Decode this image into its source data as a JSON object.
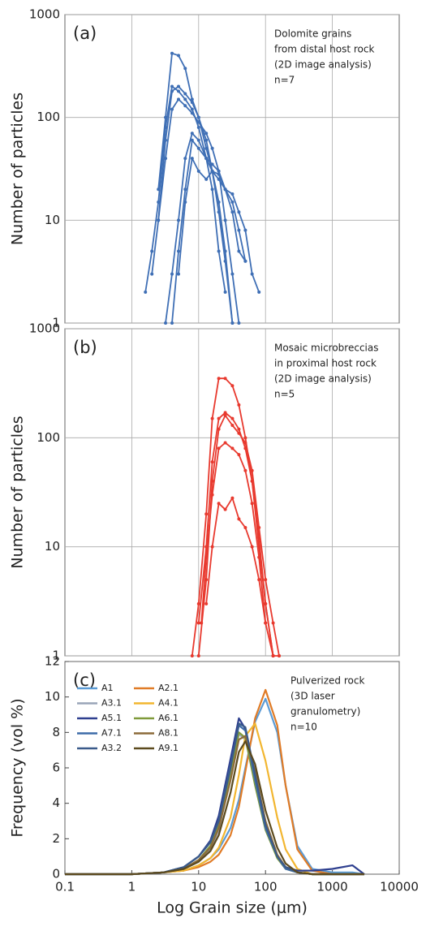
{
  "chart_data": [
    {
      "type": "line",
      "panel_label": "(a)",
      "ylabel": "Number of particles",
      "ylog": true,
      "xlog": true,
      "grid": true,
      "markers": true,
      "xtick_labels": false,
      "annotation": [
        "Dolomite grains",
        "from distal host rock",
        "(2D image analysis)",
        "n=7"
      ],
      "xlim": [
        0.1,
        10000
      ],
      "xticks": [
        1,
        10,
        100,
        1000
      ],
      "ylim": [
        1,
        1000
      ],
      "yticks": [
        1,
        10,
        100,
        1000
      ],
      "series": [
        {
          "color": "#3f6fb5",
          "x": [
            2.5,
            3.2,
            4,
            5,
            6.3,
            8,
            10,
            13,
            16,
            20,
            25,
            32
          ],
          "values": [
            20,
            100,
            420,
            400,
            300,
            150,
            100,
            50,
            30,
            15,
            5,
            1
          ]
        },
        {
          "color": "#3f6fb5",
          "x": [
            1.6,
            2,
            2.5,
            3.2,
            4,
            5,
            6.3,
            8,
            10,
            13,
            16,
            20,
            25
          ],
          "values": [
            2,
            5,
            15,
            80,
            200,
            180,
            150,
            120,
            80,
            40,
            20,
            5,
            2
          ]
        },
        {
          "color": "#3f6fb5",
          "x": [
            2,
            2.5,
            3.2,
            4,
            5,
            6.3,
            8,
            10,
            13,
            16,
            20,
            25,
            32
          ],
          "values": [
            3,
            10,
            60,
            180,
            200,
            170,
            140,
            100,
            60,
            30,
            12,
            4,
            1
          ]
        },
        {
          "color": "#3f6fb5",
          "x": [
            3.2,
            4,
            5,
            6.3,
            8,
            10,
            13,
            16,
            20,
            25,
            32,
            40,
            50
          ],
          "values": [
            1,
            3,
            10,
            40,
            70,
            60,
            40,
            35,
            30,
            20,
            12,
            5,
            4
          ]
        },
        {
          "color": "#3f6fb5",
          "x": [
            4,
            5,
            6.3,
            8,
            10,
            13,
            16,
            20,
            25,
            32,
            40,
            50
          ],
          "values": [
            1,
            5,
            20,
            60,
            50,
            40,
            30,
            25,
            20,
            15,
            8,
            4
          ]
        },
        {
          "color": "#3f6fb5",
          "x": [
            5,
            6.3,
            8,
            10,
            13,
            16,
            20,
            25,
            32,
            40,
            50,
            63,
            80
          ],
          "values": [
            3,
            15,
            40,
            30,
            25,
            30,
            28,
            20,
            18,
            12,
            8,
            3,
            2
          ]
        },
        {
          "color": "#3f6fb5",
          "x": [
            2.5,
            3.2,
            4,
            5,
            6.3,
            8,
            10,
            13,
            16,
            20,
            25,
            32,
            40
          ],
          "values": [
            10,
            40,
            120,
            150,
            130,
            110,
            90,
            70,
            50,
            30,
            10,
            3,
            1
          ]
        }
      ]
    },
    {
      "type": "line",
      "panel_label": "(b)",
      "ylabel": "Number of particles",
      "ylog": true,
      "xlog": true,
      "grid": true,
      "markers": true,
      "xtick_labels": false,
      "annotation": [
        "Mosaic microbreccias",
        "in proximal host rock",
        "(2D image analysis)",
        "n=5"
      ],
      "xlim": [
        0.1,
        10000
      ],
      "xticks": [
        1,
        10,
        100,
        1000
      ],
      "ylim": [
        1,
        1000
      ],
      "yticks": [
        1,
        10,
        100,
        1000
      ],
      "series": [
        {
          "color": "#e8392e",
          "x": [
            8,
            10,
            13,
            16,
            20,
            25,
            32,
            40,
            50,
            63,
            80,
            100,
            130,
            160
          ],
          "values": [
            1,
            3,
            20,
            150,
            350,
            350,
            300,
            200,
            100,
            40,
            10,
            3,
            1,
            1
          ]
        },
        {
          "color": "#e8392e",
          "x": [
            10,
            13,
            16,
            20,
            25,
            32,
            40,
            50,
            63,
            80,
            100,
            130
          ],
          "values": [
            2,
            10,
            60,
            150,
            170,
            150,
            120,
            80,
            40,
            12,
            3,
            1
          ]
        },
        {
          "color": "#e8392e",
          "x": [
            10,
            13,
            16,
            20,
            25,
            32,
            40,
            50,
            63,
            80,
            100,
            130,
            160
          ],
          "values": [
            1,
            5,
            40,
            120,
            160,
            130,
            110,
            90,
            50,
            15,
            5,
            2,
            1
          ]
        },
        {
          "color": "#e8392e",
          "x": [
            11,
            13,
            16,
            20,
            25,
            32,
            40,
            50,
            63,
            80,
            100
          ],
          "values": [
            2,
            8,
            30,
            80,
            90,
            80,
            70,
            50,
            25,
            8,
            2
          ]
        },
        {
          "color": "#e8392e",
          "x": [
            13,
            16,
            20,
            25,
            32,
            40,
            50,
            63,
            80,
            100,
            130
          ],
          "values": [
            3,
            10,
            25,
            22,
            28,
            18,
            15,
            10,
            5,
            2,
            1
          ]
        }
      ]
    },
    {
      "type": "line",
      "panel_label": "(c)",
      "ylabel": "Frequency (vol %)",
      "xlabel": "Log Grain size  (μm)",
      "ylog": false,
      "xlog": true,
      "grid": false,
      "markers": false,
      "xtick_labels": true,
      "annotation": [
        "Pulverized rock",
        "(3D laser",
        "granulometry)",
        "n=10"
      ],
      "xlim": [
        0.1,
        10000
      ],
      "xticks": [
        0.1,
        1,
        10,
        100,
        1000,
        10000
      ],
      "ylim": [
        0,
        12
      ],
      "yticks": [
        0,
        2,
        4,
        6,
        8,
        10,
        12
      ],
      "x": [
        0.1,
        1,
        3,
        6,
        10,
        15,
        20,
        30,
        40,
        50,
        70,
        100,
        150,
        200,
        300,
        500,
        1000,
        2000,
        3000
      ],
      "series": [
        {
          "name": "A1",
          "color": "#5b9bd5",
          "values": [
            0,
            0,
            0.1,
            0.2,
            0.5,
            0.9,
            1.4,
            2.6,
            4.2,
            6,
            8.6,
            9.9,
            8,
            5,
            1.6,
            0.3,
            0.1,
            0.1,
            0
          ]
        },
        {
          "name": "A2.1",
          "color": "#e07b26",
          "values": [
            0,
            0,
            0.1,
            0.2,
            0.4,
            0.7,
            1.1,
            2.2,
            3.8,
            5.8,
            8.8,
            10.4,
            8.4,
            5,
            1.4,
            0.2,
            0,
            0,
            0
          ]
        },
        {
          "name": "A3.1",
          "color": "#9aa5b8",
          "values": [
            0,
            0,
            0.1,
            0.3,
            0.7,
            1.4,
            2.5,
            5.4,
            7.9,
            7.6,
            5.2,
            2.8,
            1,
            0.4,
            0.1,
            0,
            0,
            0,
            0
          ]
        },
        {
          "name": "A4.1",
          "color": "#f2b630",
          "values": [
            0,
            0,
            0.1,
            0.2,
            0.5,
            0.9,
            1.5,
            3.2,
            5.6,
            7.8,
            8.5,
            6.4,
            3.2,
            1.4,
            0.3,
            0,
            0,
            0,
            0
          ]
        },
        {
          "name": "A5.1",
          "color": "#2e3f8f",
          "values": [
            0,
            0,
            0.1,
            0.4,
            1,
            1.9,
            3.3,
            6.5,
            8.8,
            8.2,
            5.4,
            2.7,
            1,
            0.4,
            0.2,
            0.2,
            0.3,
            0.5,
            0
          ]
        },
        {
          "name": "A6.1",
          "color": "#7f9a3a",
          "values": [
            0,
            0,
            0.1,
            0.3,
            0.8,
            1.6,
            2.8,
            5.8,
            8,
            7.7,
            5,
            2.5,
            0.9,
            0.3,
            0.1,
            0,
            0,
            0,
            0
          ]
        },
        {
          "name": "A7.1",
          "color": "#3d6ca8",
          "values": [
            0,
            0,
            0.1,
            0.4,
            1,
            1.8,
            3,
            6.1,
            8.4,
            8.1,
            5.3,
            2.6,
            1,
            0.3,
            0.1,
            0,
            0,
            0,
            0
          ]
        },
        {
          "name": "A8.1",
          "color": "#8c6b3a",
          "values": [
            0,
            0,
            0.1,
            0.3,
            0.8,
            1.5,
            2.6,
            5.3,
            7.6,
            7.8,
            5.8,
            3,
            1.1,
            0.4,
            0.1,
            0,
            0,
            0,
            0
          ]
        },
        {
          "name": "A3.2",
          "color": "#3a5a8a",
          "values": [
            0,
            0,
            0.1,
            0.4,
            1,
            1.8,
            3,
            6,
            8.5,
            8.3,
            5.6,
            2.8,
            1,
            0.4,
            0.1,
            0,
            0,
            0,
            0
          ]
        },
        {
          "name": "A9.1",
          "color": "#5c4a1e",
          "values": [
            0,
            0,
            0.1,
            0.3,
            0.7,
            1.3,
            2.2,
            4.6,
            6.9,
            7.5,
            6.2,
            3.6,
            1.5,
            0.6,
            0.1,
            0,
            0,
            0,
            0
          ]
        }
      ]
    }
  ]
}
